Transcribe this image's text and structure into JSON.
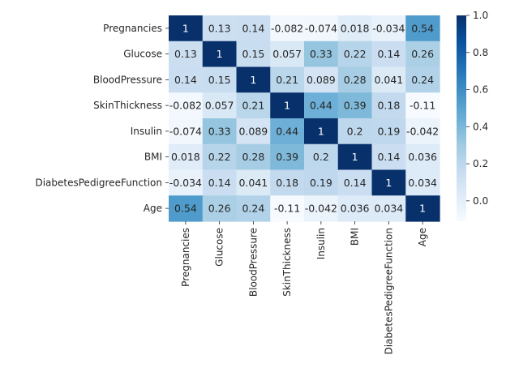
{
  "chart_data": {
    "type": "heatmap",
    "title": "",
    "xlabel": "",
    "ylabel": "",
    "colormap": "Blues",
    "categories": [
      "Pregnancies",
      "Glucose",
      "BloodPressure",
      "SkinThickness",
      "Insulin",
      "BMI",
      "DiabetesPedigreeFunction",
      "Age"
    ],
    "values": [
      [
        1,
        0.13,
        0.14,
        -0.082,
        -0.074,
        0.018,
        -0.034,
        0.54
      ],
      [
        0.13,
        1,
        0.15,
        0.057,
        0.33,
        0.22,
        0.14,
        0.26
      ],
      [
        0.14,
        0.15,
        1,
        0.21,
        0.089,
        0.28,
        0.041,
        0.24
      ],
      [
        -0.082,
        0.057,
        0.21,
        1,
        0.44,
        0.39,
        0.18,
        -0.11
      ],
      [
        -0.074,
        0.33,
        0.089,
        0.44,
        1,
        0.2,
        0.19,
        -0.042
      ],
      [
        0.018,
        0.22,
        0.28,
        0.39,
        0.2,
        1,
        0.14,
        0.036
      ],
      [
        -0.034,
        0.14,
        0.041,
        0.18,
        0.19,
        0.14,
        1,
        0.034
      ],
      [
        0.54,
        0.26,
        0.24,
        -0.11,
        -0.042,
        0.036,
        0.034,
        1
      ]
    ],
    "annotations": [
      [
        "1",
        "0.13",
        "0.14",
        "-0.082",
        "-0.074",
        "0.018",
        "-0.034",
        "0.54"
      ],
      [
        "0.13",
        "1",
        "0.15",
        "0.057",
        "0.33",
        "0.22",
        "0.14",
        "0.26"
      ],
      [
        "0.14",
        "0.15",
        "1",
        "0.21",
        "0.089",
        "0.28",
        "0.041",
        "0.24"
      ],
      [
        "-0.082",
        "0.057",
        "0.21",
        "1",
        "0.44",
        "0.39",
        "0.18",
        "-0.11"
      ],
      [
        "-0.074",
        "0.33",
        "0.089",
        "0.44",
        "1",
        "0.2",
        "0.19",
        "-0.042"
      ],
      [
        "0.018",
        "0.22",
        "0.28",
        "0.39",
        "0.2",
        "1",
        "0.14",
        "0.036"
      ],
      [
        "-0.034",
        "0.14",
        "0.041",
        "0.18",
        "0.19",
        "0.14",
        "1",
        "0.034"
      ],
      [
        "0.54",
        "0.26",
        "0.24",
        "-0.11",
        "-0.042",
        "0.036",
        "0.034",
        "1"
      ]
    ],
    "vmin": -0.11,
    "vmax": 1,
    "colorbar": {
      "ticks": [
        0.0,
        0.2,
        0.4,
        0.6,
        0.8,
        1.0
      ],
      "tick_labels": [
        "0.0",
        "0.2",
        "0.4",
        "0.6",
        "0.8",
        "1.0"
      ]
    }
  }
}
